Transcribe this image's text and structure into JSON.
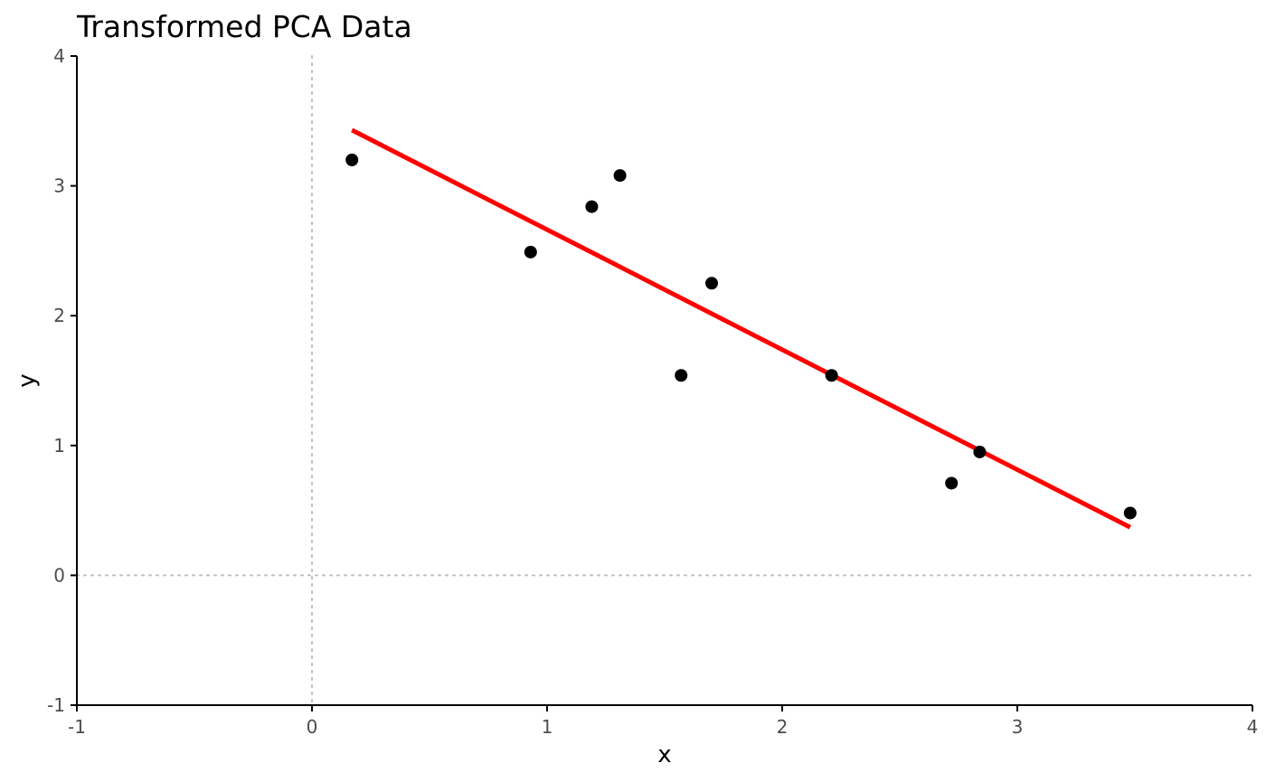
{
  "chart_data": {
    "type": "scatter",
    "title": "Transformed PCA Data",
    "xlabel": "x",
    "ylabel": "y",
    "xlim": [
      -1,
      4
    ],
    "ylim": [
      -1,
      4
    ],
    "xticks": [
      "-1",
      "0",
      "1",
      "2",
      "3",
      "4"
    ],
    "yticks": [
      "-1",
      "0",
      "1",
      "2",
      "3",
      "4"
    ],
    "grid": false,
    "reference_lines": {
      "x": 0,
      "y": 0,
      "style": "dotted"
    },
    "points": [
      {
        "x": 0.17,
        "y": 3.2
      },
      {
        "x": 0.93,
        "y": 2.49
      },
      {
        "x": 1.19,
        "y": 2.84
      },
      {
        "x": 1.31,
        "y": 3.08
      },
      {
        "x": 1.57,
        "y": 1.54
      },
      {
        "x": 1.7,
        "y": 2.25
      },
      {
        "x": 2.21,
        "y": 1.54
      },
      {
        "x": 2.72,
        "y": 0.71
      },
      {
        "x": 2.84,
        "y": 0.95
      },
      {
        "x": 3.48,
        "y": 0.48
      }
    ],
    "fit_line": {
      "x": [
        0.17,
        3.48
      ],
      "y": [
        3.43,
        0.37
      ]
    },
    "colors": {
      "points": "#000000",
      "fit_line": "#ff0000",
      "reference_lines": "#bdbdbd",
      "axis": "#000000",
      "tick_labels": "#4d4d4d"
    }
  }
}
